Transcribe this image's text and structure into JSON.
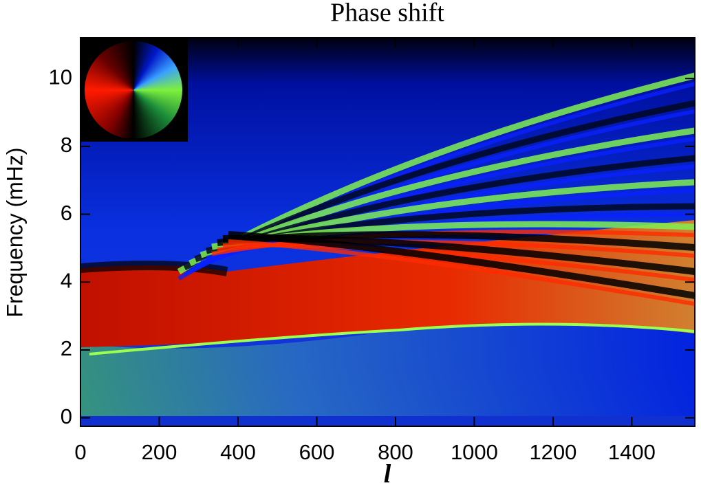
{
  "chart_data": {
    "type": "heatmap",
    "title": "Phase shift",
    "x_label": "l",
    "y_label": "Frequency (mHz)",
    "xlim": [
      0,
      1560
    ],
    "ylim": [
      -0.25,
      11.2
    ],
    "xticks": [
      0,
      200,
      400,
      600,
      800,
      1000,
      1200,
      1400
    ],
    "yticks": [
      0,
      2,
      4,
      6,
      8,
      10
    ]
  }
}
